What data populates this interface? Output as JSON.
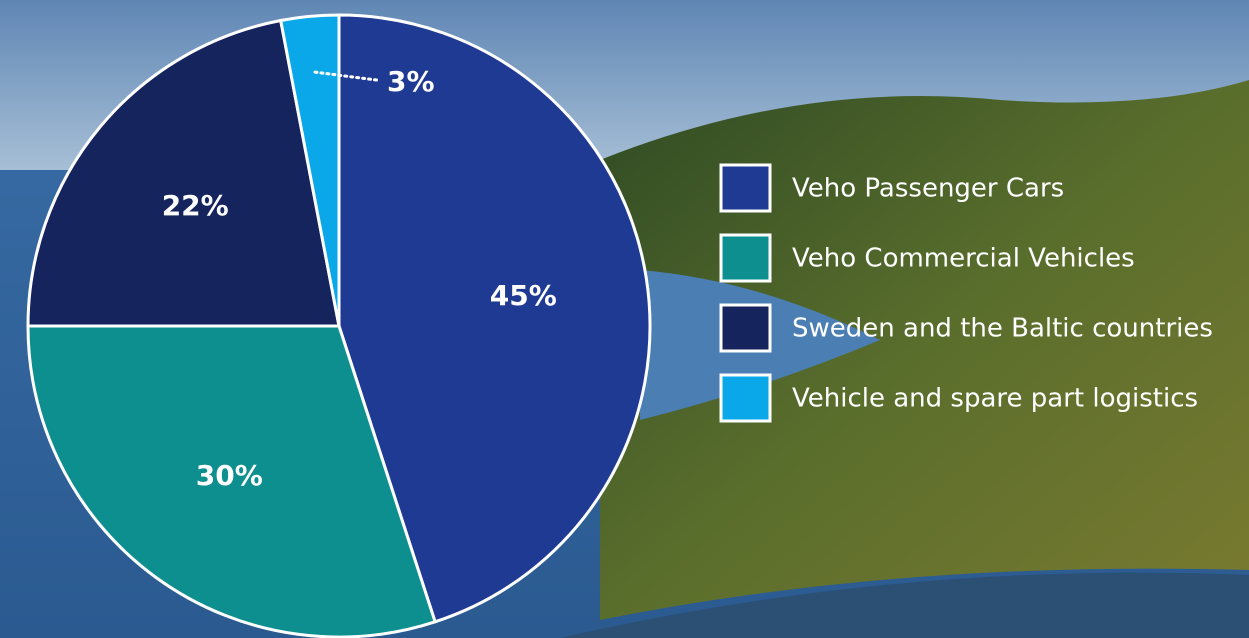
{
  "chart_data": {
    "type": "pie",
    "categories": [
      "Veho Passenger Cars",
      "Veho Commercial Vehicles",
      "Sweden and the Baltic countries",
      "Vehicle and spare part logistics"
    ],
    "values": [
      45,
      30,
      22,
      3
    ],
    "value_labels": [
      "45%",
      "30%",
      "22%",
      "3%"
    ],
    "colors": [
      "#1f3a93",
      "#0e8f8f",
      "#16245e",
      "#0aa8e8"
    ],
    "legend": "right"
  }
}
